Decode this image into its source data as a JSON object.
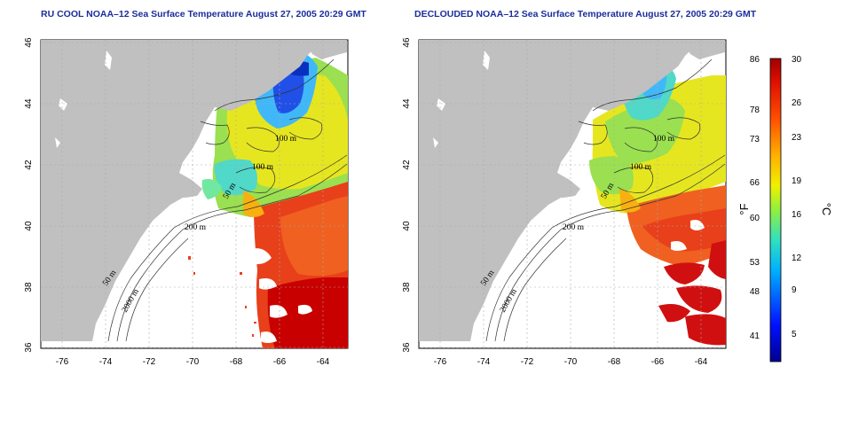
{
  "panels": [
    {
      "title": "RU COOL NOAA–12 Sea Surface Temperature August 27, 2005 20:29 GMT",
      "variant": "raw"
    },
    {
      "title": "DECLOUDED NOAA–12 Sea Surface Temperature August 27, 2005 20:29 GMT",
      "variant": "declouded"
    }
  ],
  "axes": {
    "lon_ticks": [
      "-76",
      "-74",
      "-72",
      "-70",
      "-68",
      "-66",
      "-64"
    ],
    "lat_ticks": [
      "36",
      "38",
      "40",
      "42",
      "44",
      "46"
    ]
  },
  "contour_labels": {
    "left": [
      "100 m",
      "100 m",
      "50 m",
      "200 m",
      "50 m",
      "2000 m"
    ],
    "right": [
      "100 m",
      "100 m",
      "50 m",
      "200 m",
      "50 m",
      "2000 m"
    ]
  },
  "colorbar": {
    "fahrenheit_labels": [
      "86",
      "78",
      "73",
      "66",
      "60",
      "53",
      "48",
      "41"
    ],
    "celsius_labels": [
      "30",
      "26",
      "23",
      "19",
      "16",
      "12",
      "9",
      "5"
    ],
    "unit_f": "°F",
    "unit_c": "°C"
  },
  "colors": {
    "land": "#c0c0c0",
    "title": "#1a2d9c",
    "warm": "#e8281a",
    "hot": "#b80000",
    "cool": "#40c8ff",
    "cold": "#1040e0"
  }
}
